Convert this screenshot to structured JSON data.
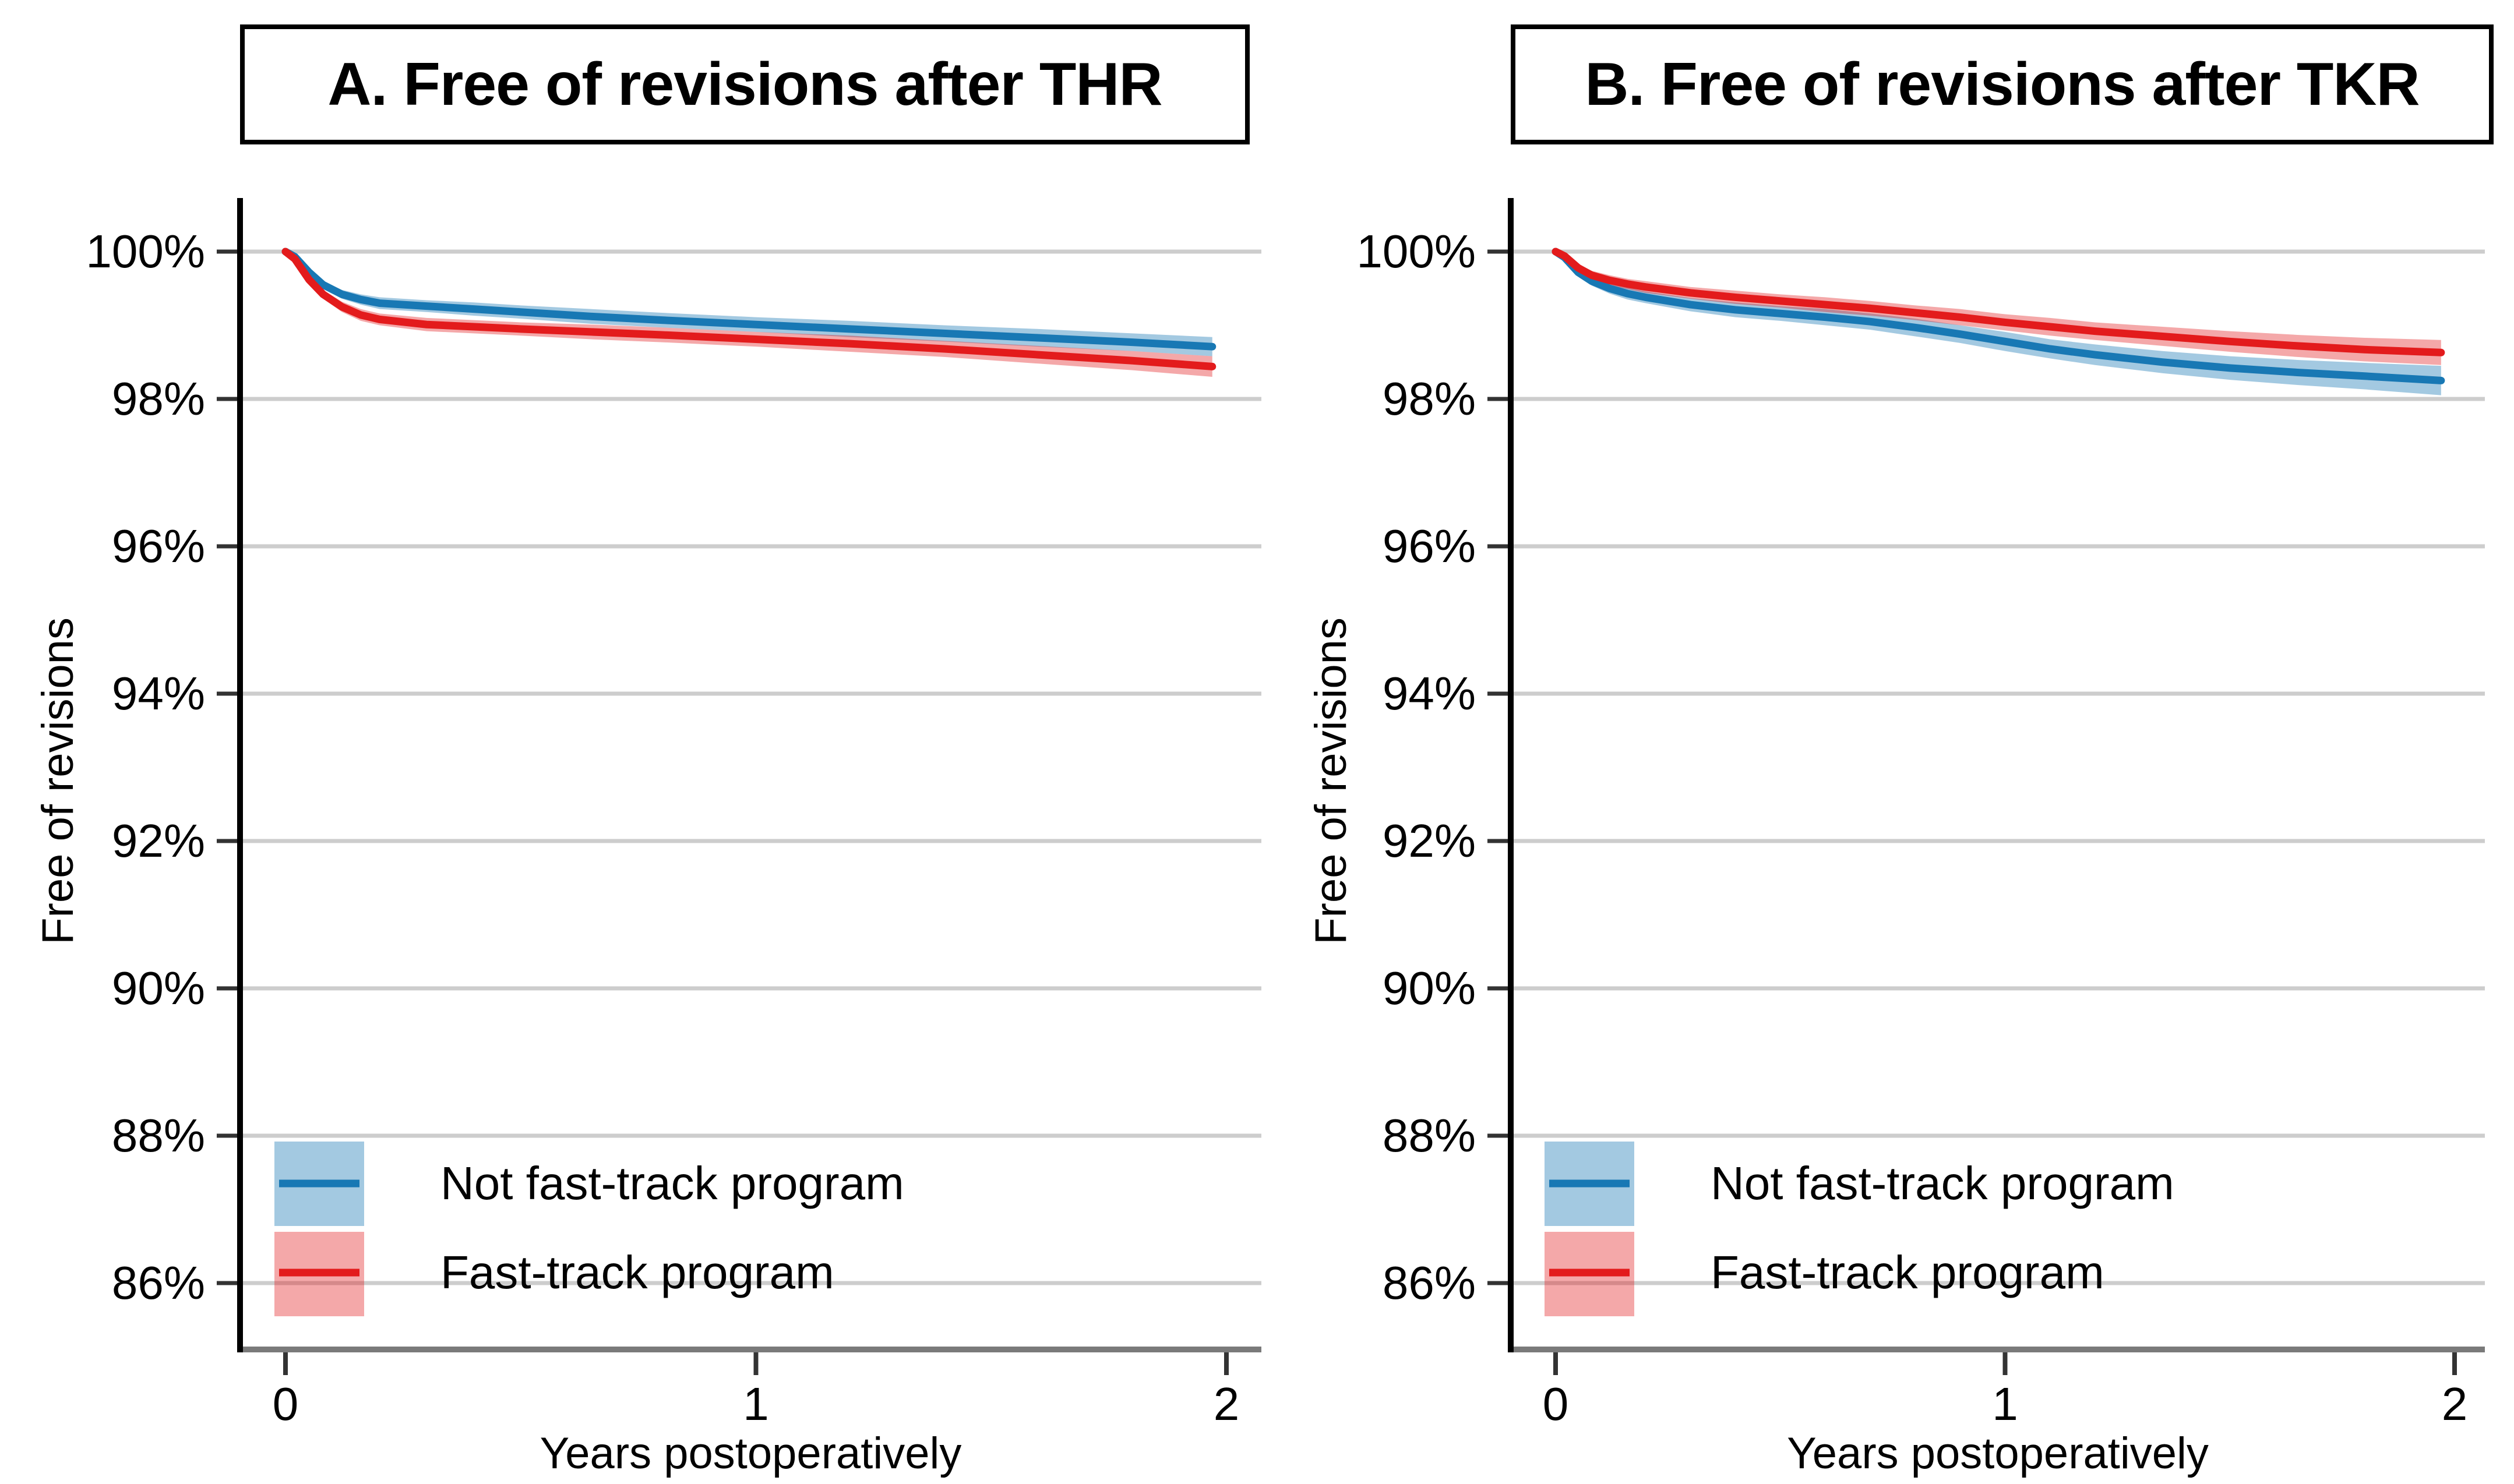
{
  "figure": {
    "background": "#ffffff",
    "panel_count": 2,
    "grid_color": "#cdcdcd",
    "x_axis_color": "#7a7a7a",
    "y_axis_color": "#000000",
    "tick_color": "#333333"
  },
  "chart_data": [
    {
      "panel": "A",
      "type": "line",
      "title": "A. Free of revisions after THR",
      "xlabel": "Years postoperatively",
      "ylabel": "Free of revisions",
      "x_ticks": [
        0,
        1,
        2
      ],
      "y_ticks": [
        "100%",
        "98%",
        "96%",
        "94%",
        "92%",
        "90%",
        "88%",
        "86%"
      ],
      "xlim": [
        -0.1,
        2.07
      ],
      "ylim": [
        85.1,
        100.5
      ],
      "grid": true,
      "legend_position": "inside-bottom-left",
      "series": [
        {
          "name": "Not fast-track program",
          "color": "#1878b4",
          "band_color": "rgba(24,120,180,0.40)",
          "points": [
            [
              0,
              100,
              0
            ],
            [
              0.02,
              99.93,
              0.02
            ],
            [
              0.05,
              99.72,
              0.04
            ],
            [
              0.08,
              99.55,
              0.05
            ],
            [
              0.12,
              99.42,
              0.06
            ],
            [
              0.16,
              99.35,
              0.07
            ],
            [
              0.2,
              99.3,
              0.08
            ],
            [
              0.3,
              99.26,
              0.08
            ],
            [
              0.4,
              99.22,
              0.09
            ],
            [
              0.5,
              99.18,
              0.09
            ],
            [
              0.65,
              99.12,
              0.1
            ],
            [
              0.8,
              99.07,
              0.1
            ],
            [
              1,
              99.01,
              0.1
            ],
            [
              1.2,
              98.95,
              0.11
            ],
            [
              1.4,
              98.89,
              0.11
            ],
            [
              1.6,
              98.83,
              0.12
            ],
            [
              1.8,
              98.77,
              0.12
            ],
            [
              1.97,
              98.71,
              0.13
            ]
          ]
        },
        {
          "name": "Fast-track program",
          "color": "#e31b1c",
          "band_color": "rgba(227,27,28,0.38)",
          "points": [
            [
              0,
              100,
              0
            ],
            [
              0.02,
              99.9,
              0.03
            ],
            [
              0.05,
              99.62,
              0.05
            ],
            [
              0.08,
              99.42,
              0.06
            ],
            [
              0.12,
              99.25,
              0.07
            ],
            [
              0.16,
              99.14,
              0.08
            ],
            [
              0.2,
              99.08,
              0.08
            ],
            [
              0.3,
              99.01,
              0.09
            ],
            [
              0.4,
              98.98,
              0.09
            ],
            [
              0.5,
              98.95,
              0.09
            ],
            [
              0.65,
              98.91,
              0.1
            ],
            [
              0.8,
              98.87,
              0.1
            ],
            [
              1,
              98.81,
              0.1
            ],
            [
              1.2,
              98.75,
              0.11
            ],
            [
              1.4,
              98.68,
              0.11
            ],
            [
              1.6,
              98.6,
              0.12
            ],
            [
              1.8,
              98.52,
              0.13
            ],
            [
              1.97,
              98.44,
              0.14
            ]
          ]
        }
      ]
    },
    {
      "panel": "B",
      "type": "line",
      "title": "B. Free of revisions after TKR",
      "xlabel": "Years postoperatively",
      "ylabel": "Free of revisions",
      "x_ticks": [
        0,
        1,
        2
      ],
      "y_ticks": [
        "100%",
        "98%",
        "96%",
        "94%",
        "92%",
        "90%",
        "88%",
        "86%"
      ],
      "xlim": [
        -0.1,
        2.07
      ],
      "ylim": [
        85.1,
        100.5
      ],
      "grid": true,
      "legend_position": "inside-bottom-left",
      "series": [
        {
          "name": "Not fast-track program",
          "color": "#1878b4",
          "band_color": "rgba(24,120,180,0.40)",
          "points": [
            [
              0,
              100,
              0
            ],
            [
              0.02,
              99.92,
              0.03
            ],
            [
              0.05,
              99.72,
              0.05
            ],
            [
              0.08,
              99.6,
              0.06
            ],
            [
              0.12,
              99.5,
              0.07
            ],
            [
              0.16,
              99.43,
              0.08
            ],
            [
              0.2,
              99.38,
              0.08
            ],
            [
              0.3,
              99.28,
              0.09
            ],
            [
              0.4,
              99.21,
              0.1
            ],
            [
              0.5,
              99.16,
              0.1
            ],
            [
              0.6,
              99.11,
              0.11
            ],
            [
              0.7,
              99.05,
              0.11
            ],
            [
              0.8,
              98.97,
              0.12
            ],
            [
              0.9,
              98.88,
              0.12
            ],
            [
              1,
              98.78,
              0.13
            ],
            [
              1.1,
              98.68,
              0.13
            ],
            [
              1.2,
              98.6,
              0.14
            ],
            [
              1.35,
              98.5,
              0.15
            ],
            [
              1.5,
              98.42,
              0.16
            ],
            [
              1.65,
              98.36,
              0.17
            ],
            [
              1.8,
              98.31,
              0.18
            ],
            [
              1.97,
              98.25,
              0.2
            ]
          ]
        },
        {
          "name": "Fast-track program",
          "color": "#e31b1c",
          "band_color": "rgba(227,27,28,0.38)",
          "points": [
            [
              0,
              100,
              0
            ],
            [
              0.02,
              99.94,
              0.03
            ],
            [
              0.05,
              99.78,
              0.05
            ],
            [
              0.08,
              99.68,
              0.06
            ],
            [
              0.12,
              99.61,
              0.07
            ],
            [
              0.16,
              99.56,
              0.07
            ],
            [
              0.2,
              99.52,
              0.08
            ],
            [
              0.3,
              99.44,
              0.08
            ],
            [
              0.4,
              99.38,
              0.09
            ],
            [
              0.5,
              99.33,
              0.09
            ],
            [
              0.6,
              99.28,
              0.1
            ],
            [
              0.7,
              99.23,
              0.1
            ],
            [
              0.8,
              99.17,
              0.1
            ],
            [
              0.9,
              99.11,
              0.11
            ],
            [
              1,
              99.04,
              0.11
            ],
            [
              1.1,
              98.98,
              0.12
            ],
            [
              1.2,
              98.92,
              0.12
            ],
            [
              1.35,
              98.85,
              0.13
            ],
            [
              1.5,
              98.78,
              0.14
            ],
            [
              1.65,
              98.72,
              0.15
            ],
            [
              1.8,
              98.67,
              0.16
            ],
            [
              1.97,
              98.63,
              0.17
            ]
          ]
        }
      ]
    }
  ]
}
